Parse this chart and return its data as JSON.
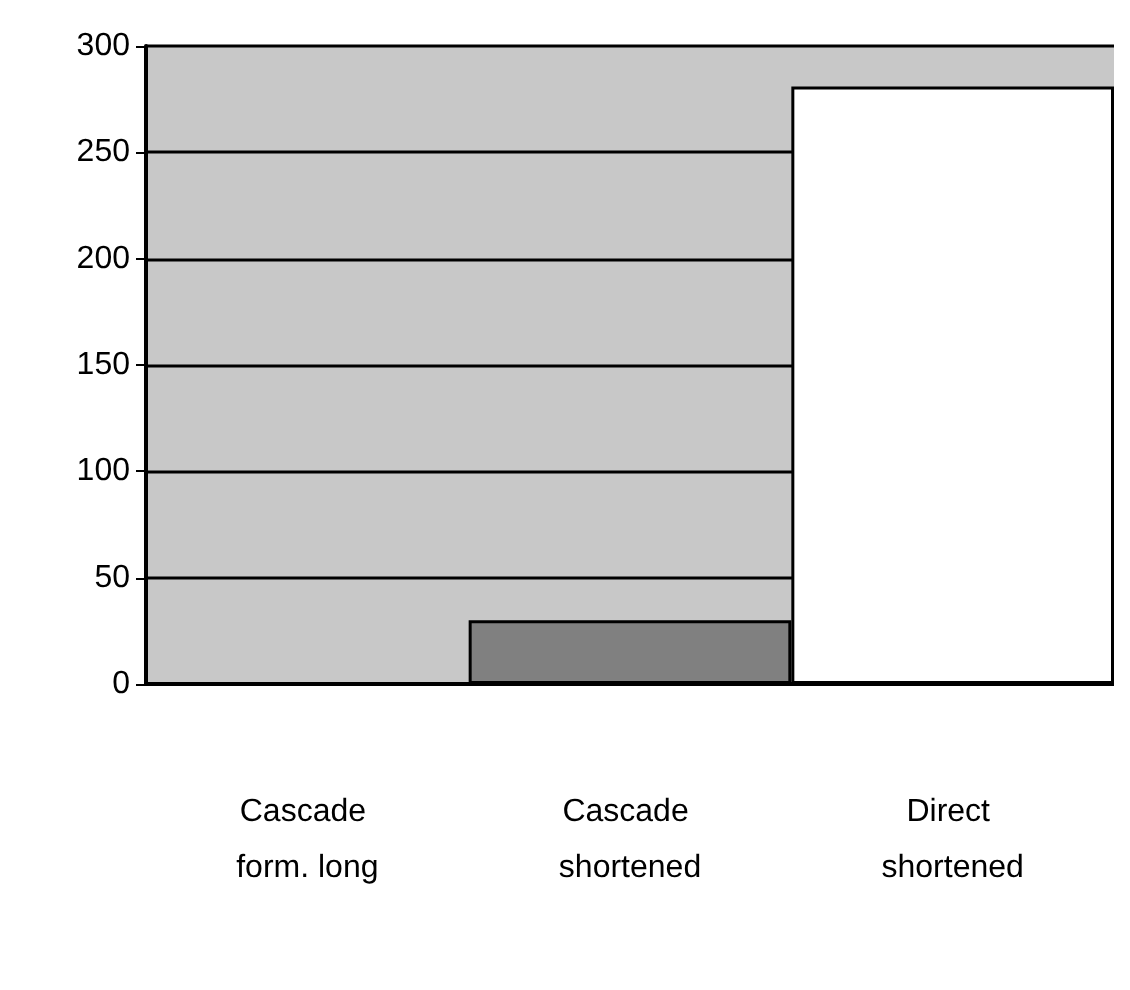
{
  "chart_data": {
    "type": "bar",
    "categories": [
      "Cascade form. long",
      "Cascade shortened",
      "Direct shortened"
    ],
    "values": [
      0,
      30,
      281
    ],
    "colors": [
      "#000000",
      "#808080",
      "#ffffff"
    ],
    "ylim": [
      0,
      300
    ],
    "yticks": [
      0,
      50,
      100,
      150,
      200,
      250,
      300
    ],
    "grid": "y"
  }
}
